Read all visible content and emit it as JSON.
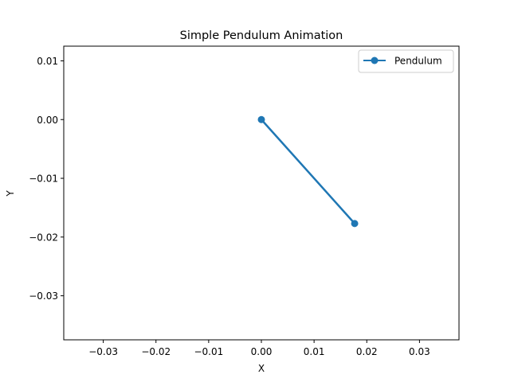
{
  "chart_data": {
    "type": "line",
    "title": "Simple Pendulum Animation",
    "xlabel": "X",
    "ylabel": "Y",
    "xlim": [
      -0.0375,
      0.0375
    ],
    "ylim": [
      -0.0375,
      0.0125
    ],
    "xticks": [
      -0.03,
      -0.02,
      -0.01,
      0.0,
      0.01,
      0.02,
      0.03
    ],
    "xtick_labels": [
      "−0.03",
      "−0.02",
      "−0.01",
      "0.00",
      "0.01",
      "0.02",
      "0.03"
    ],
    "yticks": [
      0.01,
      0.0,
      -0.01,
      -0.02,
      -0.03
    ],
    "ytick_labels": [
      "0.01",
      "0.00",
      "−0.01",
      "−0.02",
      "−0.03"
    ],
    "grid": false,
    "legend_position": "upper right",
    "series": [
      {
        "name": "Pendulum",
        "color": "#1f77b4",
        "marker": "o",
        "x": [
          0.0,
          0.0177
        ],
        "y": [
          0.0,
          -0.0177
        ]
      }
    ]
  },
  "legend": {
    "label": "Pendulum"
  }
}
